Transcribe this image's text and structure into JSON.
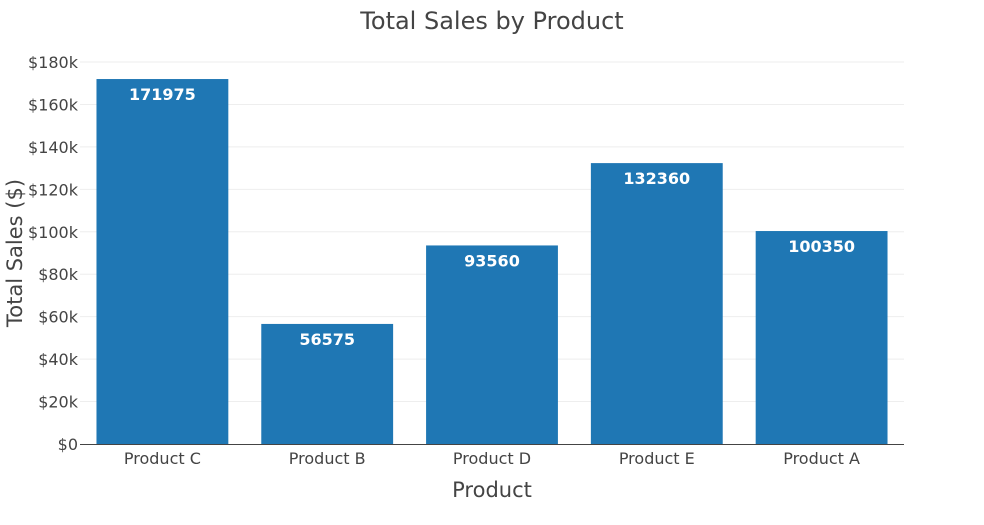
{
  "chart_data": {
    "type": "bar",
    "title": "Total Sales by Product",
    "xlabel": "Product",
    "ylabel": "Total Sales ($)",
    "categories": [
      "Product C",
      "Product B",
      "Product D",
      "Product E",
      "Product A"
    ],
    "values": [
      171975,
      56575,
      93560,
      132360,
      100350
    ],
    "data_labels": [
      "171975",
      "56575",
      "93560",
      "132360",
      "100350"
    ],
    "ylim": [
      0,
      180000
    ],
    "yticks": [
      0,
      20000,
      40000,
      60000,
      80000,
      100000,
      120000,
      140000,
      160000,
      180000
    ],
    "ytick_labels": [
      "$0",
      "$20k",
      "$40k",
      "$60k",
      "$80k",
      "$100k",
      "$120k",
      "$140k",
      "$160k",
      "$180k"
    ],
    "grid": true,
    "legend": "none",
    "bar_color": "#1f77b4"
  }
}
